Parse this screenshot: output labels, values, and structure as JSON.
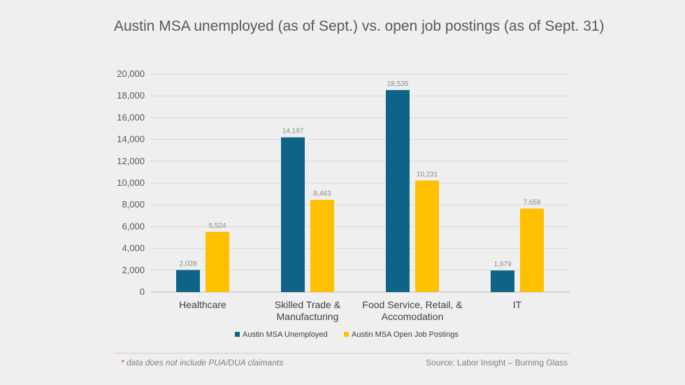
{
  "colors": {
    "unemployed": "#0e6487",
    "postings": "#ffc000",
    "background": "#efefef"
  },
  "footnote": {
    "marker": "*",
    "text": " data does not include PUA/DUA claimants"
  },
  "source": "Source: Labor Insight – Burning Glass",
  "chart_data": {
    "type": "bar",
    "title": "Austin MSA unemployed (as of Sept.) vs. open job postings (as of Sept. 31)",
    "categories": [
      [
        "Healthcare"
      ],
      [
        "Skilled Trade &",
        "Manufacturing"
      ],
      [
        "Food Service, Retail, &",
        "Accomodation"
      ],
      [
        "IT"
      ]
    ],
    "series": [
      {
        "name": "Austin MSA Unemployed",
        "values": [
          2028,
          14197,
          18535,
          1979
        ],
        "labels": [
          "2,028",
          "14,197",
          "18,535",
          "1,979"
        ]
      },
      {
        "name": "Austin MSA Open Job Postings",
        "values": [
          5524,
          8463,
          10231,
          7658
        ],
        "labels": [
          "5,524",
          "8,463",
          "10,231",
          "7,658"
        ]
      }
    ],
    "ylim": [
      0,
      20000
    ],
    "yticks": [
      "0",
      "2,000",
      "4,000",
      "6,000",
      "8,000",
      "10,000",
      "12,000",
      "14,000",
      "16,000",
      "18,000",
      "20,000"
    ],
    "xlabel": "",
    "ylabel": "",
    "grid": true,
    "legend": "bottom"
  }
}
